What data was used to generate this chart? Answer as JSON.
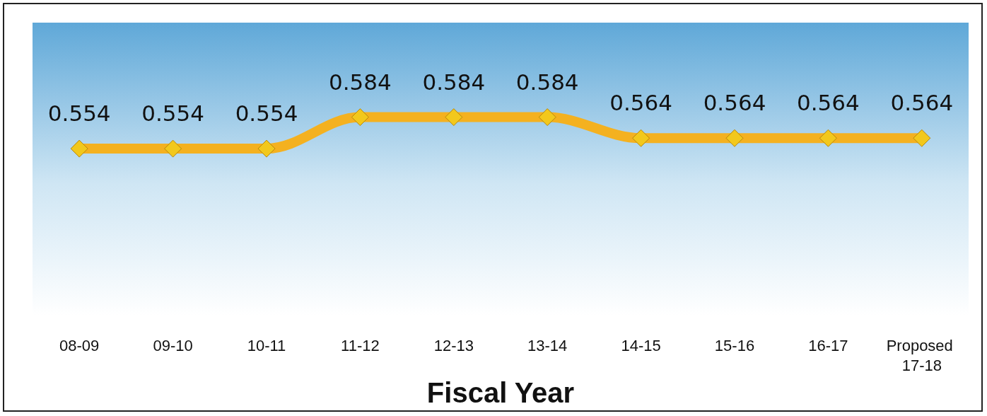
{
  "chart_data": {
    "type": "line",
    "xlabel": "Fiscal Year",
    "categories": [
      "08-09",
      "09-10",
      "10-11",
      "11-12",
      "12-13",
      "13-14",
      "14-15",
      "15-16",
      "16-17",
      "Proposed 17-18"
    ],
    "series": [
      {
        "color": "#f4b120",
        "values": [
          0.554,
          0.554,
          0.554,
          0.584,
          0.584,
          0.584,
          0.564,
          0.564,
          0.564,
          0.564
        ]
      }
    ],
    "data_labels": true,
    "marker": "diamond",
    "line_style": "solid"
  }
}
